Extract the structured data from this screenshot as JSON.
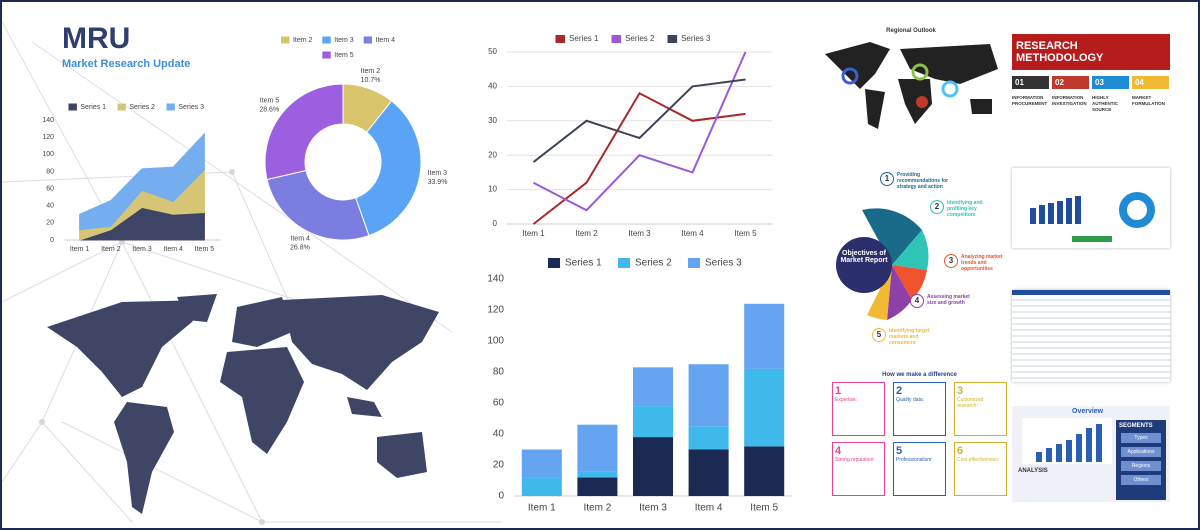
{
  "logo": {
    "mark": "MRU",
    "name": "Market Research Update"
  },
  "chart_data": [
    {
      "type": "area",
      "categories": [
        "Item 1",
        "Item 2",
        "Item 3",
        "Item 4",
        "Item 5"
      ],
      "series": [
        {
          "name": "Series 1",
          "color": "#3d4466",
          "values": [
            0,
            12,
            38,
            30,
            32
          ]
        },
        {
          "name": "Series 2",
          "color": "#d6c575",
          "values": [
            12,
            4,
            20,
            15,
            50
          ]
        },
        {
          "name": "Series 3",
          "color": "#74aeee",
          "values": [
            18,
            30,
            25,
            40,
            42
          ]
        }
      ],
      "ylim": [
        0,
        140
      ],
      "yticks": [
        0,
        20,
        40,
        60,
        80,
        100,
        120,
        140
      ],
      "grid": false,
      "stacked": true
    },
    {
      "type": "pie",
      "donut": true,
      "categories": [
        "Item 2",
        "Item 3",
        "Item 4",
        "Item 5"
      ],
      "values": [
        10.7,
        33.9,
        26.8,
        28.6
      ],
      "value_labels": [
        "10.7%",
        "33.9%",
        "26.8%",
        "28.6%"
      ],
      "colors": [
        "#d8c46a",
        "#5ba4f5",
        "#7b7ee0",
        "#9b5fe0"
      ]
    },
    {
      "type": "line",
      "categories": [
        "Item 1",
        "Item 2",
        "Item 3",
        "Item 4",
        "Item 5"
      ],
      "series": [
        {
          "name": "Series 1",
          "color": "#a52a2a",
          "values": [
            0,
            12,
            38,
            30,
            32
          ]
        },
        {
          "name": "Series 2",
          "color": "#9b59d6",
          "values": [
            12,
            4,
            20,
            15,
            50
          ]
        },
        {
          "name": "Series 3",
          "color": "#3d4458",
          "values": [
            18,
            30,
            25,
            40,
            42
          ]
        }
      ],
      "ylim": [
        0,
        50
      ],
      "yticks": [
        0,
        10,
        20,
        30,
        40,
        50
      ],
      "grid": true
    },
    {
      "type": "bar",
      "categories": [
        "Item 1",
        "Item 2",
        "Item 3",
        "Item 4",
        "Item 5"
      ],
      "series": [
        {
          "name": "Series 1",
          "color": "#1b2a52",
          "values": [
            0,
            12,
            38,
            30,
            32
          ]
        },
        {
          "name": "Series 2",
          "color": "#3fb8ec",
          "values": [
            12,
            4,
            20,
            15,
            50
          ]
        },
        {
          "name": "Series 3",
          "color": "#64a4f0",
          "values": [
            18,
            30,
            25,
            40,
            42
          ]
        }
      ],
      "ylim": [
        0,
        140
      ],
      "yticks": [
        0,
        20,
        40,
        60,
        80,
        100,
        120,
        140
      ],
      "grid": false,
      "stacked": true
    }
  ],
  "thumbnails": {
    "regional": {
      "title": "Regional Outlook"
    },
    "methodology": {
      "title": "RESEARCH METHODOLOGY",
      "steps": [
        {
          "number": "01",
          "label": "INFORMATION PROCUREMENT"
        },
        {
          "number": "02",
          "label": "INFORMATION INVESTIGATION"
        },
        {
          "number": "03",
          "label": "HIGHLY AUTHENTIC SOURCE"
        },
        {
          "number": "04",
          "label": "MARKET FORMULATION"
        }
      ]
    },
    "objectives": {
      "center": "Objectives of Market Report",
      "items": [
        {
          "number": "1",
          "text": "Providing recommendations for strategy and action"
        },
        {
          "number": "2",
          "text": "Identifying and profiling key competitors"
        },
        {
          "number": "3",
          "text": "Analyzing market trends and opportunities"
        },
        {
          "number": "4",
          "text": "Assessing market size and growth"
        },
        {
          "number": "5",
          "text": "Identifying target markets and consumers"
        }
      ]
    },
    "difference": {
      "title": "How we make a difference",
      "items": [
        {
          "number": "1",
          "text": "Expertise:"
        },
        {
          "number": "2",
          "text": "Quality data:"
        },
        {
          "number": "3",
          "text": "Customized research:"
        },
        {
          "number": "4",
          "text": "Strong reputation:"
        },
        {
          "number": "5",
          "text": "Professionalism:"
        },
        {
          "number": "6",
          "text": "Cost effectiveness:"
        }
      ]
    },
    "overview": {
      "title": "Overview",
      "segments_title": "SEGMENTS",
      "segments": [
        "Types",
        "Applications",
        "Regions",
        "Others"
      ],
      "analysis": "ANALYSIS"
    }
  }
}
